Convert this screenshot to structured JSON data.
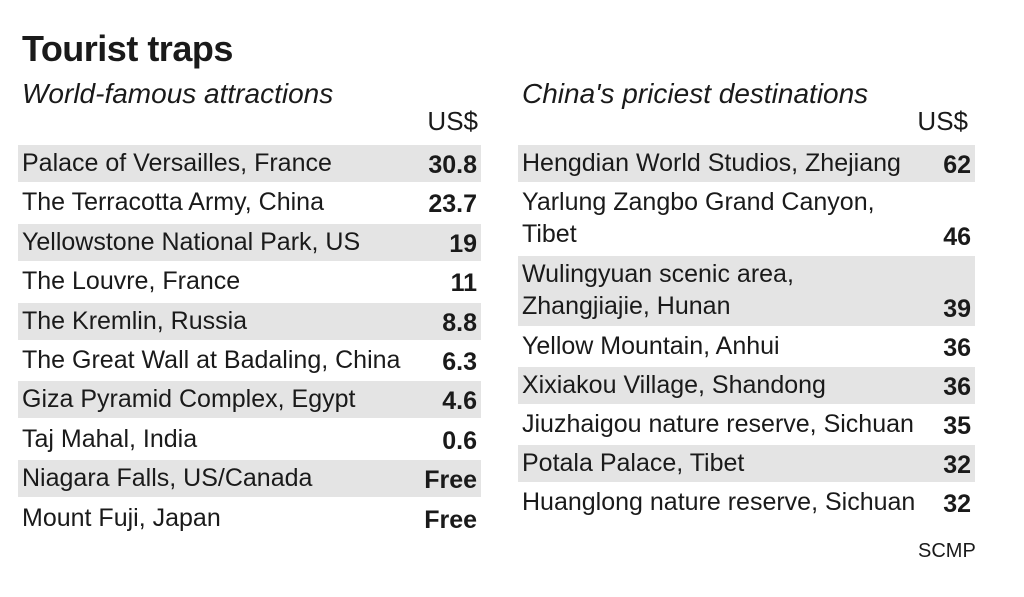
{
  "title": "Tourist traps",
  "source": "SCMP",
  "chart_data": [
    {
      "type": "table",
      "title": "World-famous attractions",
      "unit": "US$",
      "rows": [
        {
          "name": "Palace of Versailles, France",
          "value": "30.8"
        },
        {
          "name": "The Terracotta Army, China",
          "value": "23.7"
        },
        {
          "name": "Yellowstone National Park, US",
          "value": "19"
        },
        {
          "name": "The Louvre, France",
          "value": "11"
        },
        {
          "name": "The Kremlin, Russia",
          "value": "8.8"
        },
        {
          "name": "The Great Wall at Badaling, China",
          "value": "6.3"
        },
        {
          "name": "Giza Pyramid Complex, Egypt",
          "value": "4.6"
        },
        {
          "name": "Taj Mahal, India",
          "value": "0.6"
        },
        {
          "name": "Niagara Falls, US/Canada",
          "value": "Free"
        },
        {
          "name": "Mount Fuji, Japan",
          "value": "Free"
        }
      ]
    },
    {
      "type": "table",
      "title": "China's priciest destinations",
      "unit": "US$",
      "rows": [
        {
          "name": "Hengdian World Studios, Zhejiang",
          "value": "62"
        },
        {
          "name": "Yarlung Zangbo Grand Canyon,\nTibet",
          "value": "46"
        },
        {
          "name": "Wulingyuan scenic area,\nZhangjiajie, Hunan",
          "value": "39"
        },
        {
          "name": "Yellow Mountain, Anhui",
          "value": "36"
        },
        {
          "name": "Xixiakou Village, Shandong",
          "value": "36"
        },
        {
          "name": "Jiuzhaigou nature reserve, Sichuan",
          "value": "35"
        },
        {
          "name": "Potala Palace, Tibet",
          "value": "32"
        },
        {
          "name": "Huanglong nature reserve, Sichuan",
          "value": "32"
        }
      ]
    }
  ]
}
